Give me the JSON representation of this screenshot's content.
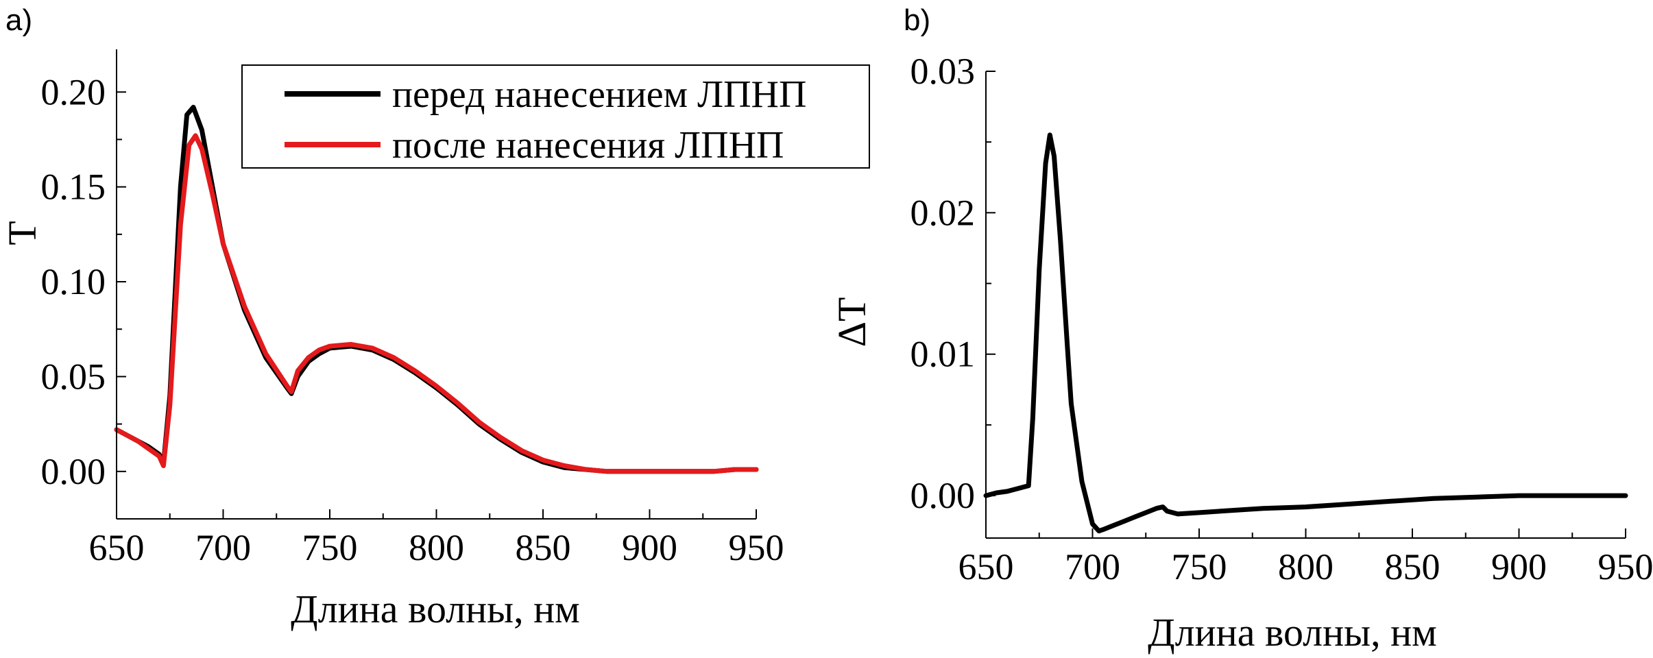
{
  "chart_data": [
    {
      "panel": "a)",
      "type": "line",
      "xlabel": "Длина волны, нм",
      "ylabel": "T",
      "xlim": [
        650,
        950
      ],
      "ylim": [
        -0.025,
        0.2225
      ],
      "xticks": [
        "650",
        "700",
        "750",
        "800",
        "850",
        "900",
        "950"
      ],
      "yticks": [
        "0.00",
        "0.05",
        "0.10",
        "0.15",
        "0.20"
      ],
      "legend": {
        "position": "top-right"
      },
      "series": [
        {
          "name": "перед нанесением ЛПНП",
          "color": "#000000",
          "x": [
            650,
            655,
            660,
            665,
            670,
            672,
            675,
            680,
            683,
            686,
            690,
            695,
            700,
            710,
            720,
            730,
            732,
            735,
            740,
            745,
            750,
            760,
            770,
            780,
            790,
            800,
            810,
            820,
            830,
            840,
            850,
            860,
            870,
            880,
            890,
            900,
            910,
            920,
            930,
            940,
            950
          ],
          "y": [
            0.022,
            0.019,
            0.016,
            0.013,
            0.009,
            0.004,
            0.04,
            0.15,
            0.188,
            0.192,
            0.18,
            0.15,
            0.12,
            0.085,
            0.06,
            0.044,
            0.041,
            0.05,
            0.058,
            0.062,
            0.065,
            0.066,
            0.064,
            0.059,
            0.052,
            0.044,
            0.035,
            0.025,
            0.017,
            0.01,
            0.005,
            0.002,
            0.001,
            0.0,
            0.0,
            0.0,
            0.0,
            0.0,
            0.0,
            0.001,
            0.001
          ]
        },
        {
          "name": "после нанесения ЛПНП",
          "color": "#e41a1c",
          "x": [
            650,
            655,
            660,
            665,
            670,
            672,
            675,
            680,
            684,
            687,
            690,
            695,
            700,
            710,
            720,
            730,
            732,
            735,
            740,
            745,
            750,
            760,
            770,
            780,
            790,
            800,
            810,
            820,
            830,
            840,
            850,
            860,
            870,
            880,
            890,
            900,
            910,
            920,
            930,
            940,
            950
          ],
          "y": [
            0.022,
            0.019,
            0.016,
            0.012,
            0.008,
            0.003,
            0.035,
            0.13,
            0.172,
            0.177,
            0.17,
            0.146,
            0.12,
            0.087,
            0.062,
            0.045,
            0.042,
            0.053,
            0.06,
            0.064,
            0.066,
            0.067,
            0.065,
            0.06,
            0.053,
            0.045,
            0.036,
            0.026,
            0.018,
            0.011,
            0.006,
            0.003,
            0.001,
            0.0,
            0.0,
            0.0,
            0.0,
            0.0,
            0.0,
            0.001,
            0.001
          ]
        }
      ]
    },
    {
      "panel": "b)",
      "type": "line",
      "xlabel": "Длина волны, нм",
      "ylabel": "ΔT",
      "xlim": [
        650,
        950
      ],
      "ylim": [
        -0.003,
        0.03
      ],
      "xticks": [
        "650",
        "700",
        "750",
        "800",
        "850",
        "900",
        "950"
      ],
      "yticks": [
        "0.00",
        "0.01",
        "0.02",
        "0.03"
      ],
      "series": [
        {
          "color": "#000000",
          "x": [
            650,
            655,
            660,
            665,
            670,
            672,
            675,
            678,
            680,
            682,
            685,
            688,
            690,
            695,
            700,
            703,
            705,
            710,
            715,
            720,
            725,
            730,
            733,
            735,
            740,
            750,
            760,
            780,
            800,
            820,
            840,
            860,
            880,
            900,
            920,
            940,
            950
          ],
          "y": [
            0.0,
            0.0002,
            0.0003,
            0.0005,
            0.0007,
            0.0055,
            0.016,
            0.0235,
            0.0255,
            0.024,
            0.018,
            0.011,
            0.0065,
            0.001,
            -0.002,
            -0.0025,
            -0.0024,
            -0.0021,
            -0.0018,
            -0.0015,
            -0.0012,
            -0.0009,
            -0.0008,
            -0.0011,
            -0.0013,
            -0.0012,
            -0.0011,
            -0.0009,
            -0.0008,
            -0.0006,
            -0.0004,
            -0.0002,
            -0.0001,
            0.0,
            0.0,
            0.0,
            0.0
          ]
        }
      ]
    }
  ]
}
